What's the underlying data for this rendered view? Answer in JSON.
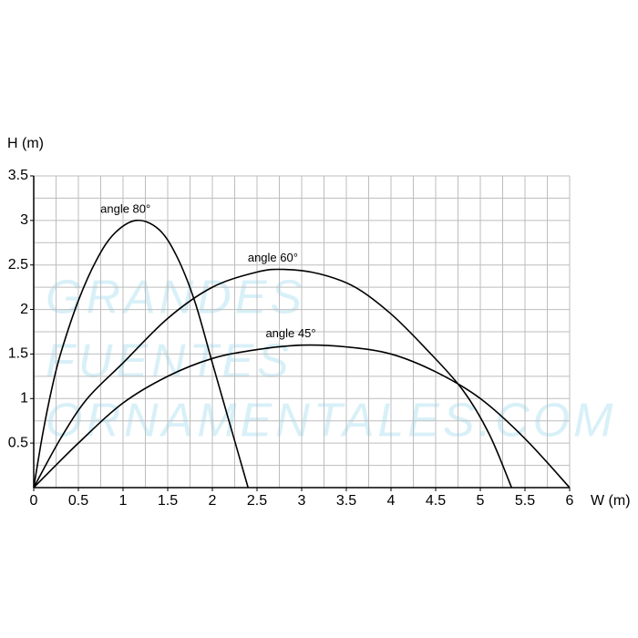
{
  "chart_data": {
    "type": "line",
    "ylabel": "H (m)",
    "xlabel": "W (m)",
    "watermark": [
      "GRANDES",
      "FUENTES",
      "ORNAMENTALES.COM"
    ],
    "xlim": [
      0,
      6
    ],
    "ylim": [
      0,
      3.5
    ],
    "xticks": [
      0,
      0.5,
      1,
      1.5,
      2,
      2.5,
      3,
      3.5,
      4,
      4.5,
      5,
      5.5,
      6
    ],
    "yticks": [
      0.5,
      1,
      1.5,
      2,
      2.5,
      3,
      3.5
    ],
    "xgrid": [
      0.25,
      0.5,
      0.75,
      1,
      1.25,
      1.5,
      1.75,
      2,
      2.25,
      2.5,
      2.75,
      3,
      3.25,
      3.5,
      3.75,
      4,
      4.25,
      4.5,
      4.75,
      5,
      5.25,
      5.5,
      5.75,
      6
    ],
    "ygrid": [
      0.25,
      0.5,
      0.75,
      1,
      1.25,
      1.5,
      1.75,
      2,
      2.25,
      2.5,
      2.75,
      3,
      3.25,
      3.5
    ],
    "grid": true,
    "series": [
      {
        "name": "angle 80°",
        "color": "#000000",
        "x": [
          0,
          0.1,
          0.2,
          0.3,
          0.5,
          0.7,
          0.9,
          1.15,
          1.4,
          1.6,
          1.8,
          2.0,
          2.2,
          2.4
        ],
        "values": [
          0,
          0.6,
          1.1,
          1.5,
          2.1,
          2.55,
          2.85,
          3.0,
          2.9,
          2.6,
          2.1,
          1.4,
          0.7,
          0
        ]
      },
      {
        "name": "angle 60°",
        "color": "#000000",
        "x": [
          0,
          0.3,
          0.6,
          1.0,
          1.5,
          2.0,
          2.5,
          2.8,
          3.2,
          3.6,
          4.0,
          4.4,
          4.8,
          5.1,
          5.35
        ],
        "values": [
          0,
          0.55,
          1.0,
          1.4,
          1.9,
          2.25,
          2.42,
          2.45,
          2.4,
          2.25,
          1.95,
          1.55,
          1.1,
          0.6,
          0
        ]
      },
      {
        "name": "angle 45°",
        "color": "#000000",
        "x": [
          0,
          0.5,
          1,
          1.5,
          2,
          2.5,
          3,
          3.5,
          4,
          4.5,
          5,
          5.5,
          6
        ],
        "values": [
          0,
          0.5,
          0.95,
          1.25,
          1.45,
          1.55,
          1.6,
          1.58,
          1.5,
          1.3,
          1.0,
          0.55,
          0
        ]
      }
    ]
  }
}
